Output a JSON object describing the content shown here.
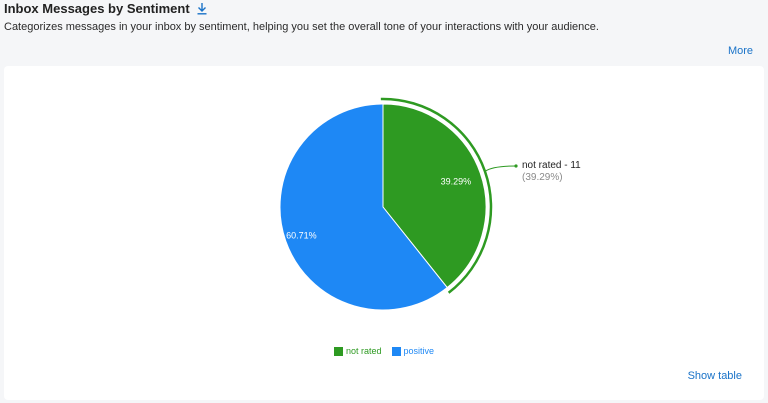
{
  "header": {
    "title": "Inbox Messages by Sentiment",
    "subtitle": "Categorizes messages in your inbox by sentiment, helping you set the overall tone of your interactions with your audience.",
    "download_icon": "download-icon",
    "more_label": "More"
  },
  "footer": {
    "show_table_label": "Show table"
  },
  "colors": {
    "not_rated": "#2e9a22",
    "positive": "#1e88f5",
    "link": "#1a73c8"
  },
  "chart_data": {
    "type": "pie",
    "slices": [
      {
        "name": "not rated",
        "value": 11,
        "percent": 39.29,
        "percent_label": "39.29%",
        "color": "#2e9a22",
        "highlighted": true
      },
      {
        "name": "positive",
        "value": 17,
        "percent": 60.71,
        "percent_label": "60.71%",
        "color": "#1e88f5",
        "highlighted": false
      }
    ],
    "callout": {
      "label": "not rated - 11",
      "sublabel": "(39.29%)"
    },
    "legend": [
      "not rated",
      "positive"
    ],
    "legend_position": "bottom-center"
  }
}
